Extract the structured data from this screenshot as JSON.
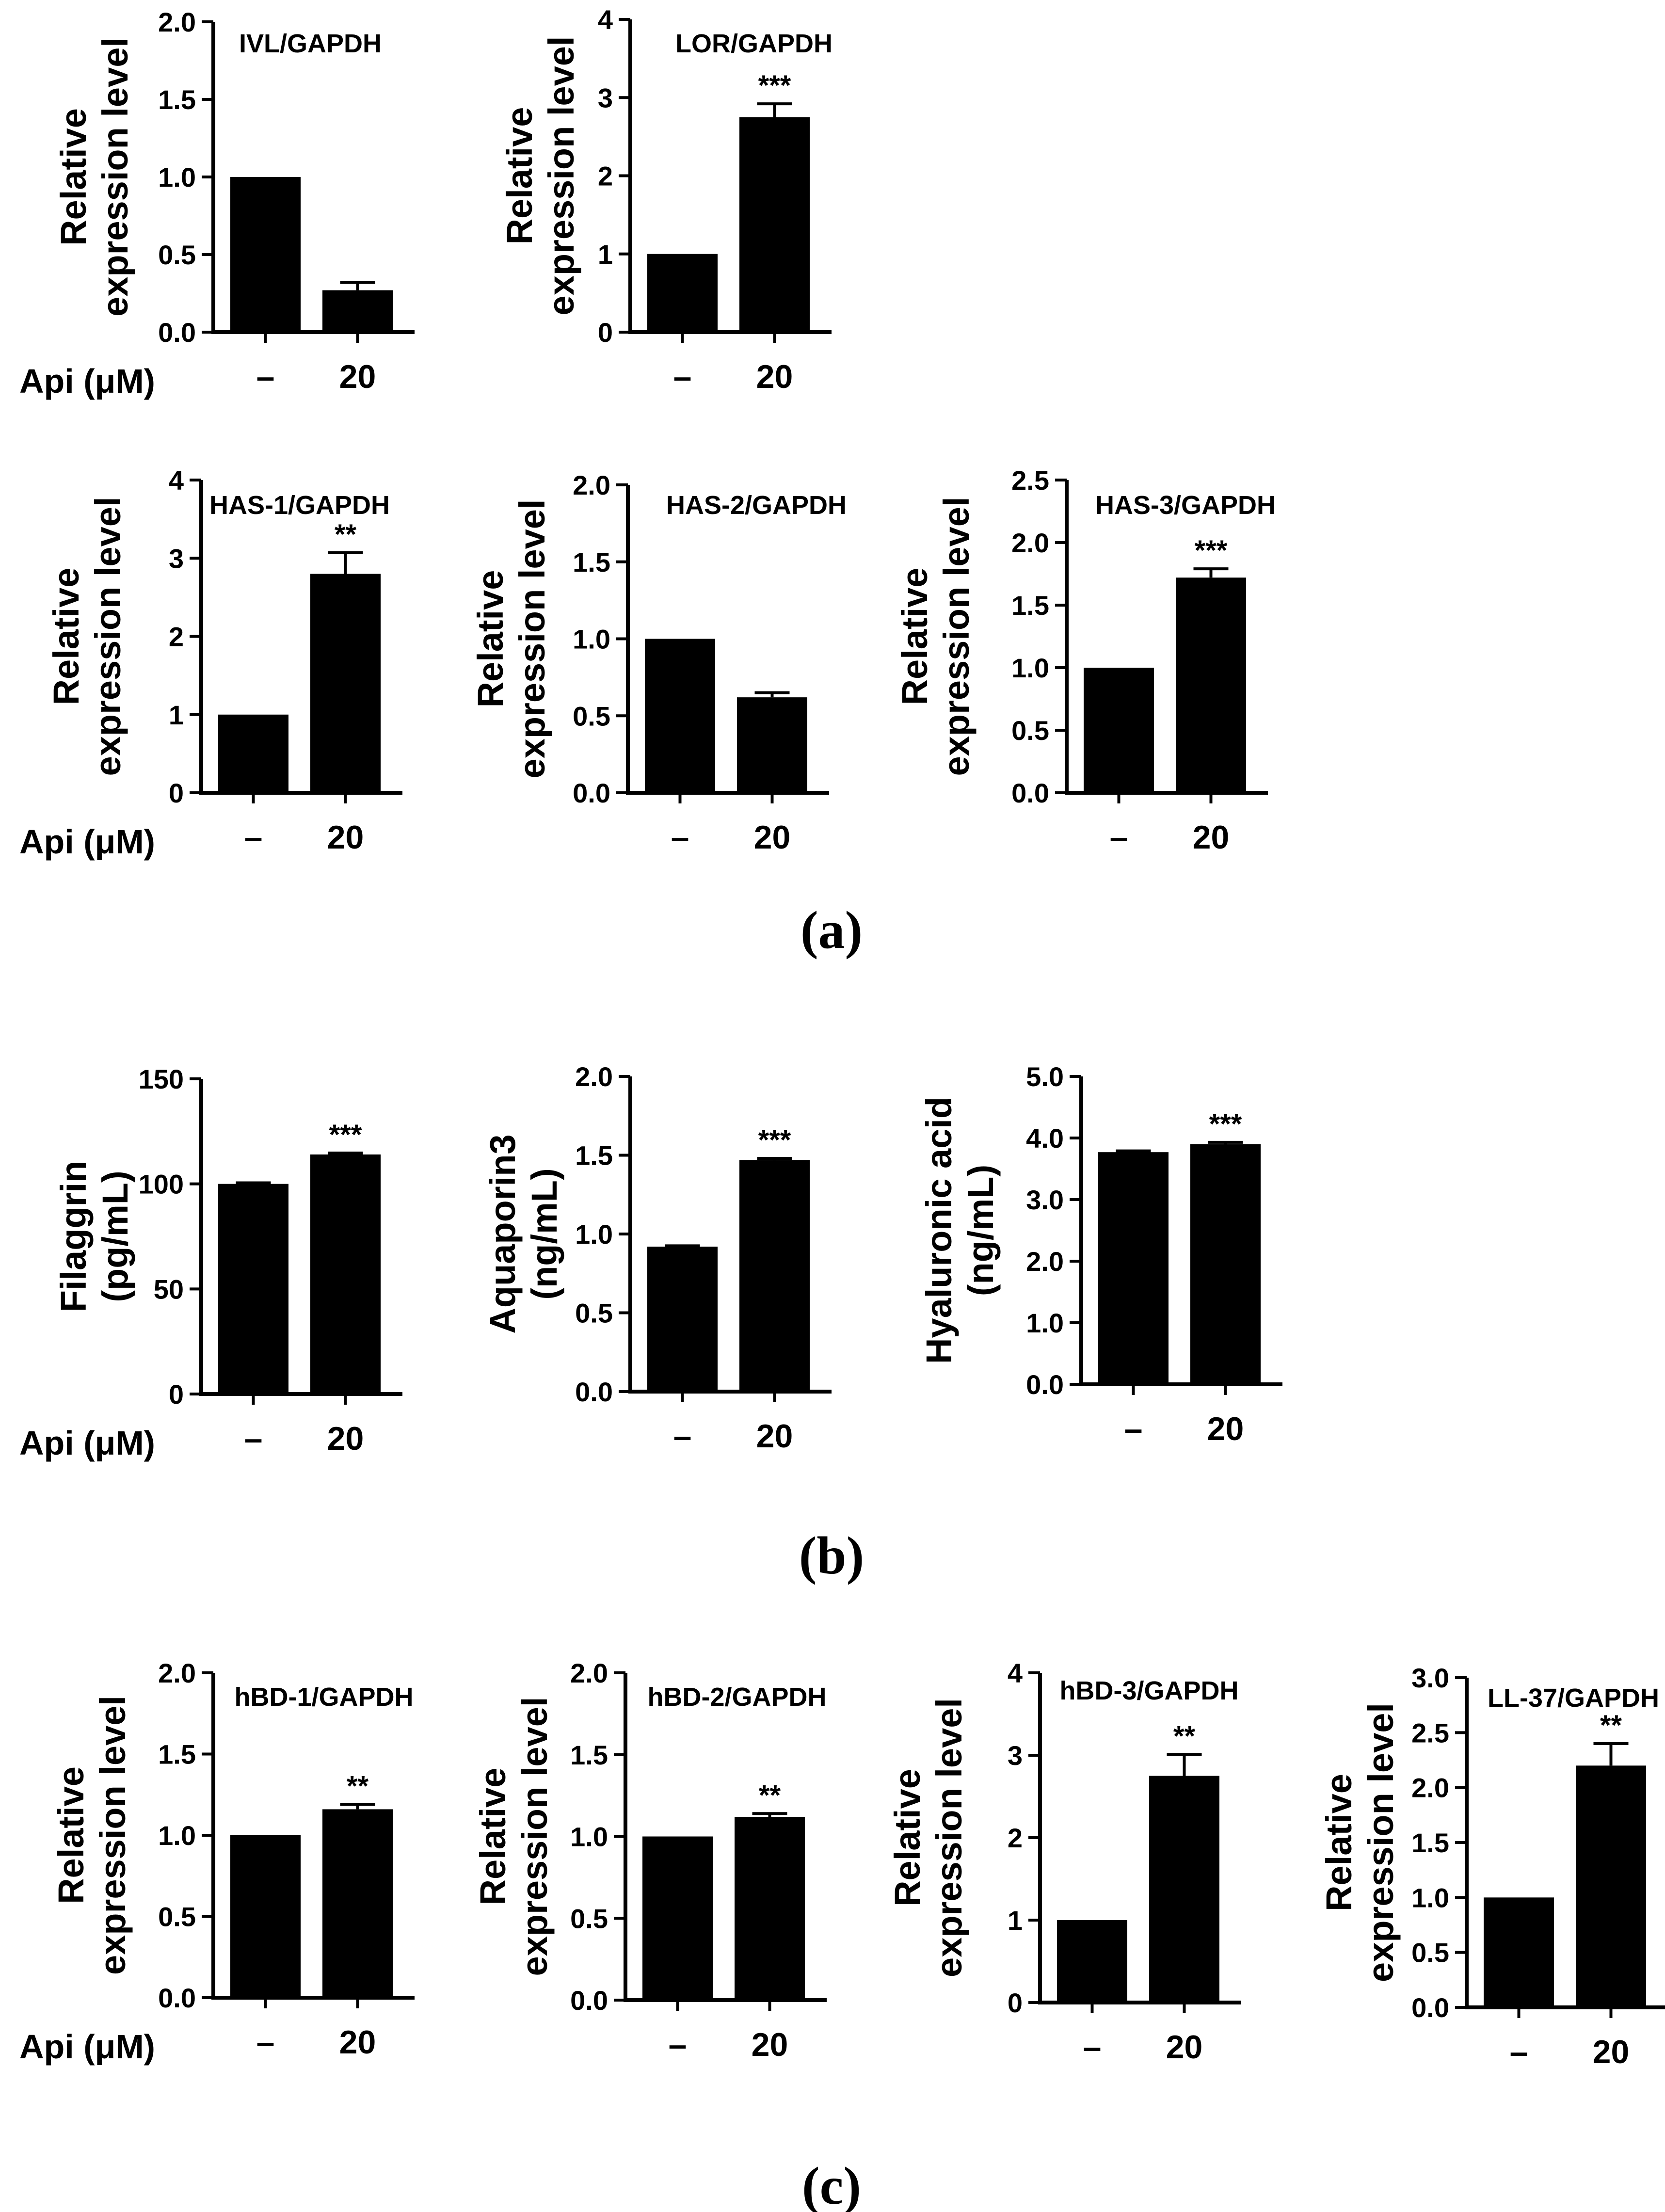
{
  "colors": {
    "bar": "#000000",
    "axis": "#000000",
    "background": "#ffffff"
  },
  "group_label": "Api (μM)",
  "panel_labels": [
    "(a)",
    "(b)",
    "(c)"
  ],
  "chart_data": [
    {
      "type": "bar",
      "panel": "a",
      "title": "IVL/GAPDH",
      "ylabel": [
        "Relative",
        "expression level"
      ],
      "categories": [
        "–",
        "20"
      ],
      "values": [
        1.0,
        0.27
      ],
      "errors": [
        0,
        0.05
      ],
      "significance": [
        "",
        ""
      ],
      "ylim": [
        0,
        2.0
      ],
      "yticks": [
        "0.0",
        "0.5",
        "1.0",
        "1.5",
        "2.0"
      ],
      "show_group_label": true
    },
    {
      "type": "bar",
      "panel": "a",
      "title": "LOR/GAPDH",
      "ylabel": [
        "Relative",
        "expression level"
      ],
      "categories": [
        "–",
        "20"
      ],
      "values": [
        1.0,
        2.75
      ],
      "errors": [
        0,
        0.17
      ],
      "significance": [
        "",
        "***"
      ],
      "ylim": [
        0,
        4
      ],
      "yticks": [
        "0",
        "1",
        "2",
        "3",
        "4"
      ],
      "show_group_label": false
    },
    {
      "type": "bar",
      "panel": "a",
      "title": "HAS-1/GAPDH",
      "ylabel": [
        "Relative",
        "expression level"
      ],
      "categories": [
        "–",
        "20"
      ],
      "values": [
        1.0,
        2.8
      ],
      "errors": [
        0,
        0.27
      ],
      "significance": [
        "",
        "**"
      ],
      "ylim": [
        0,
        4
      ],
      "yticks": [
        "0",
        "1",
        "2",
        "3",
        "4"
      ],
      "show_group_label": true
    },
    {
      "type": "bar",
      "panel": "a",
      "title": "HAS-2/GAPDH",
      "ylabel": [
        "Relative",
        "expression level"
      ],
      "categories": [
        "–",
        "20"
      ],
      "values": [
        1.0,
        0.62
      ],
      "errors": [
        0,
        0.03
      ],
      "significance": [
        "",
        ""
      ],
      "ylim": [
        0,
        2.0
      ],
      "yticks": [
        "0.0",
        "0.5",
        "1.0",
        "1.5",
        "2.0"
      ],
      "show_group_label": false
    },
    {
      "type": "bar",
      "panel": "a",
      "title": "HAS-3/GAPDH",
      "ylabel": [
        "Relative",
        "expression level"
      ],
      "categories": [
        "–",
        "20"
      ],
      "values": [
        1.0,
        1.72
      ],
      "errors": [
        0,
        0.07
      ],
      "significance": [
        "",
        "***"
      ],
      "ylim": [
        0,
        2.5
      ],
      "yticks": [
        "0.0",
        "0.5",
        "1.0",
        "1.5",
        "2.0",
        "2.5"
      ],
      "show_group_label": false
    },
    {
      "type": "bar",
      "panel": "b",
      "title": "",
      "ylabel": [
        "Filaggrin",
        "(pg/mL)"
      ],
      "categories": [
        "–",
        "20"
      ],
      "values": [
        100,
        114
      ],
      "errors": [
        0.5,
        0.7
      ],
      "significance": [
        "",
        "***"
      ],
      "ylim": [
        0,
        150
      ],
      "yticks": [
        "0",
        "50",
        "100",
        "150"
      ],
      "show_group_label": true
    },
    {
      "type": "bar",
      "panel": "b",
      "title": "",
      "ylabel": [
        "Aquaporin3",
        "(ng/mL)"
      ],
      "categories": [
        "–",
        "20"
      ],
      "values": [
        0.92,
        1.47
      ],
      "errors": [
        0.005,
        0.01
      ],
      "significance": [
        "",
        "***"
      ],
      "ylim": [
        0,
        2.0
      ],
      "yticks": [
        "0.0",
        "0.5",
        "1.0",
        "1.5",
        "2.0"
      ],
      "show_group_label": false
    },
    {
      "type": "bar",
      "panel": "b",
      "title": "",
      "ylabel": [
        "Hyaluronic acid",
        "(ng/mL)"
      ],
      "categories": [
        "–",
        "20"
      ],
      "values": [
        3.77,
        3.9
      ],
      "errors": [
        0.02,
        0.03
      ],
      "significance": [
        "",
        "***"
      ],
      "ylim": [
        0,
        5.0
      ],
      "yticks": [
        "0.0",
        "1.0",
        "2.0",
        "3.0",
        "4.0",
        "5.0"
      ],
      "show_group_label": false
    },
    {
      "type": "bar",
      "panel": "c",
      "title": "hBD-1/GAPDH",
      "ylabel": [
        "Relative",
        "expression level"
      ],
      "categories": [
        "–",
        "20"
      ],
      "values": [
        1.0,
        1.16
      ],
      "errors": [
        0,
        0.03
      ],
      "significance": [
        "",
        "**"
      ],
      "ylim": [
        0,
        2.0
      ],
      "yticks": [
        "0.0",
        "0.5",
        "1.0",
        "1.5",
        "2.0"
      ],
      "show_group_label": true
    },
    {
      "type": "bar",
      "panel": "c",
      "title": "hBD-2/GAPDH",
      "ylabel": [
        "Relative",
        "expression level"
      ],
      "categories": [
        "–",
        "20"
      ],
      "values": [
        1.0,
        1.12
      ],
      "errors": [
        0,
        0.02
      ],
      "significance": [
        "",
        "**"
      ],
      "ylim": [
        0,
        2.0
      ],
      "yticks": [
        "0.0",
        "0.5",
        "1.0",
        "1.5",
        "2.0"
      ],
      "show_group_label": false
    },
    {
      "type": "bar",
      "panel": "c",
      "title": "hBD-3/GAPDH",
      "ylabel": [
        "Relative",
        "expression level"
      ],
      "categories": [
        "–",
        "20"
      ],
      "values": [
        1.0,
        2.75
      ],
      "errors": [
        0,
        0.26
      ],
      "significance": [
        "",
        "**"
      ],
      "ylim": [
        0,
        4
      ],
      "yticks": [
        "0",
        "1",
        "2",
        "3",
        "4"
      ],
      "show_group_label": false
    },
    {
      "type": "bar",
      "panel": "c",
      "title": "LL-37/GAPDH",
      "ylabel": [
        "Relative",
        "expression level"
      ],
      "categories": [
        "–",
        "20"
      ],
      "values": [
        1.0,
        2.2
      ],
      "errors": [
        0,
        0.2
      ],
      "significance": [
        "",
        "**"
      ],
      "ylim": [
        0,
        3.0
      ],
      "yticks": [
        "0.0",
        "0.5",
        "1.0",
        "1.5",
        "2.0",
        "2.5",
        "3.0"
      ],
      "show_group_label": false
    }
  ]
}
